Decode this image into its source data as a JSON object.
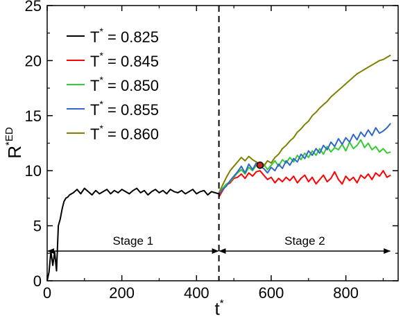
{
  "chart_data": {
    "type": "line",
    "xlabel": "t",
    "xlabel_sup": "*",
    "ylabel": "R",
    "ylabel_sup": "*ED",
    "xlim": [
      0,
      940
    ],
    "ylim": [
      0,
      25
    ],
    "xticks": [
      0,
      200,
      400,
      600,
      800
    ],
    "yticks": [
      0,
      5,
      10,
      15,
      20,
      25
    ],
    "xtick_labels": [
      "0",
      "200",
      "400",
      "600",
      "800"
    ],
    "ytick_labels": [
      "0",
      "5",
      "10",
      "15",
      "20",
      "25"
    ],
    "legend_position": "top-left",
    "series": [
      {
        "name": "T* = 0.825",
        "label_prefix": "T",
        "label_sup": "*",
        "label_value": " = 0.825",
        "color": "#000000",
        "x": [
          0,
          5,
          10,
          15,
          20,
          25,
          30,
          35,
          40,
          45,
          50,
          55,
          60,
          70,
          80,
          90,
          100,
          110,
          120,
          130,
          140,
          150,
          160,
          170,
          180,
          190,
          200,
          210,
          220,
          230,
          240,
          250,
          260,
          270,
          280,
          290,
          300,
          310,
          320,
          330,
          340,
          350,
          360,
          370,
          380,
          390,
          400,
          410,
          420,
          430,
          440,
          450,
          460
        ],
        "y": [
          0,
          0.8,
          2.7,
          1.4,
          2.6,
          0.9,
          5.0,
          5.6,
          6.5,
          7.2,
          7.5,
          7.6,
          7.8,
          8.0,
          8.3,
          7.9,
          8.4,
          8.1,
          7.8,
          8.2,
          7.9,
          8.1,
          8.3,
          7.9,
          8.2,
          8.0,
          8.3,
          8.1,
          7.9,
          8.2,
          8.4,
          8.0,
          8.2,
          7.8,
          8.1,
          8.3,
          8.0,
          8.2,
          7.9,
          8.3,
          8.1,
          8.0,
          8.2,
          7.9,
          8.1,
          8.3,
          7.9,
          8.1,
          8.2,
          7.8,
          8.1,
          8.0,
          7.9
        ]
      },
      {
        "name": "T* = 0.845",
        "label_prefix": "T",
        "label_sup": "*",
        "label_value": " = 0.845",
        "color": "#ff0000",
        "x": [
          460,
          470,
          480,
          490,
          500,
          510,
          520,
          530,
          540,
          550,
          560,
          570,
          580,
          590,
          600,
          610,
          620,
          630,
          640,
          650,
          660,
          670,
          680,
          690,
          700,
          710,
          720,
          730,
          740,
          750,
          760,
          770,
          780,
          790,
          800,
          810,
          820,
          830,
          840,
          850,
          860,
          870,
          880,
          890,
          900,
          910,
          920
        ],
        "y": [
          7.6,
          8.2,
          8.7,
          8.9,
          9.3,
          9.4,
          9.7,
          9.3,
          9.8,
          9.5,
          9.9,
          10.0,
          9.6,
          9.2,
          9.4,
          8.9,
          9.3,
          9.0,
          9.4,
          9.1,
          9.5,
          8.9,
          9.3,
          9.6,
          9.0,
          9.4,
          8.8,
          9.2,
          9.6,
          9.0,
          9.3,
          9.9,
          9.2,
          8.8,
          9.5,
          9.1,
          9.4,
          8.9,
          9.6,
          9.3,
          9.7,
          9.2,
          9.8,
          9.5,
          10.0,
          9.4,
          9.6
        ]
      },
      {
        "name": "T* = 0.850",
        "label_prefix": "T",
        "label_sup": "*",
        "label_value": " = 0.850",
        "color": "#33cc33",
        "x": [
          460,
          470,
          480,
          490,
          500,
          510,
          520,
          530,
          540,
          550,
          560,
          570,
          580,
          590,
          600,
          610,
          620,
          630,
          640,
          650,
          660,
          670,
          680,
          690,
          700,
          710,
          720,
          730,
          740,
          750,
          760,
          770,
          780,
          790,
          800,
          810,
          820,
          830,
          840,
          850,
          860,
          870,
          880,
          890,
          900,
          910,
          920
        ],
        "y": [
          7.9,
          8.4,
          8.8,
          9.0,
          9.4,
          9.8,
          10.1,
          9.7,
          10.3,
          10.0,
          10.5,
          10.2,
          10.6,
          10.1,
          10.5,
          10.9,
          10.4,
          11.0,
          10.7,
          11.2,
          10.8,
          11.4,
          11.0,
          11.6,
          11.2,
          11.8,
          11.4,
          12.0,
          11.5,
          12.2,
          11.7,
          12.1,
          11.9,
          12.4,
          11.8,
          12.6,
          12.0,
          12.3,
          12.8,
          12.1,
          12.5,
          11.9,
          12.2,
          11.7,
          12.0,
          11.6,
          11.7
        ]
      },
      {
        "name": "T* = 0.855",
        "label_prefix": "T",
        "label_sup": "*",
        "label_value": " = 0.855",
        "color": "#3366cc",
        "x": [
          460,
          470,
          480,
          490,
          500,
          510,
          520,
          530,
          540,
          550,
          560,
          570,
          580,
          590,
          600,
          610,
          620,
          630,
          640,
          650,
          660,
          670,
          680,
          690,
          700,
          710,
          720,
          730,
          740,
          750,
          760,
          770,
          780,
          790,
          800,
          810,
          820,
          830,
          840,
          850,
          860,
          870,
          880,
          890,
          900,
          910,
          920
        ],
        "y": [
          7.8,
          8.3,
          8.6,
          9.1,
          9.5,
          9.9,
          10.4,
          9.8,
          10.6,
          10.1,
          10.7,
          10.4,
          10.2,
          9.8,
          10.3,
          10.0,
          10.6,
          10.2,
          10.9,
          10.5,
          11.1,
          10.8,
          11.5,
          11.1,
          11.8,
          11.4,
          12.0,
          11.6,
          12.3,
          11.9,
          12.6,
          12.2,
          12.9,
          12.4,
          13.0,
          12.6,
          13.3,
          12.8,
          13.5,
          13.1,
          13.7,
          13.2,
          13.9,
          13.4,
          13.6,
          13.9,
          14.3
        ]
      },
      {
        "name": "T* = 0.860",
        "label_prefix": "T",
        "label_sup": "*",
        "label_value": " = 0.860",
        "color": "#808000",
        "x": [
          460,
          470,
          480,
          490,
          500,
          510,
          520,
          530,
          540,
          550,
          560,
          570,
          580,
          590,
          600,
          610,
          620,
          630,
          640,
          650,
          660,
          670,
          680,
          690,
          700,
          710,
          720,
          730,
          740,
          750,
          760,
          770,
          780,
          790,
          800,
          810,
          820,
          830,
          840,
          850,
          860,
          870,
          880,
          890,
          900,
          910,
          920
        ],
        "y": [
          8.0,
          8.7,
          9.4,
          10.0,
          10.4,
          10.8,
          11.2,
          10.9,
          11.3,
          11.0,
          10.8,
          10.6,
          10.4,
          10.9,
          10.7,
          11.2,
          11.5,
          12.0,
          12.3,
          12.7,
          13.0,
          13.5,
          13.8,
          14.2,
          14.5,
          15.0,
          15.3,
          15.7,
          16.0,
          16.3,
          16.7,
          17.0,
          17.3,
          17.6,
          17.9,
          18.2,
          18.5,
          18.8,
          19.0,
          19.2,
          19.4,
          19.6,
          19.8,
          20.0,
          20.1,
          20.3,
          20.5
        ]
      }
    ],
    "vertical_line_x": 460,
    "highlight_point": {
      "x": 570,
      "y": 10.5,
      "color": "#cc2222"
    },
    "stages": [
      {
        "label": "Stage 1",
        "from": 0,
        "to": 460,
        "y": 2.7
      },
      {
        "label": "Stage 2",
        "from": 460,
        "to": 920,
        "y": 2.7
      }
    ]
  }
}
